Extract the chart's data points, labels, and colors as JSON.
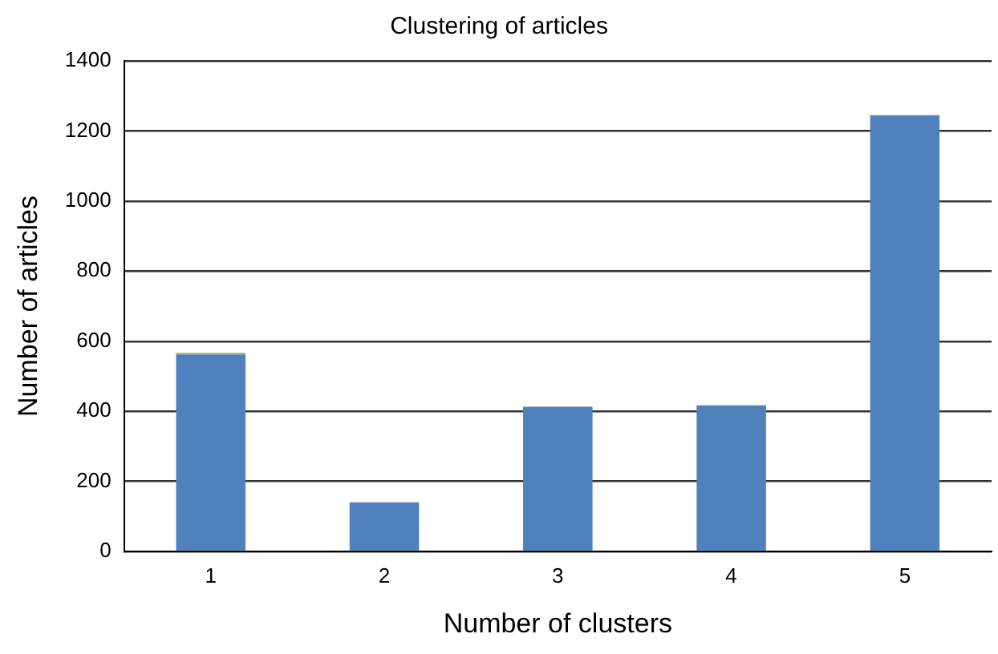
{
  "chart_data": {
    "type": "bar",
    "title": "Clustering of articles",
    "xlabel": "Number of clusters",
    "ylabel": "Number of articles",
    "categories": [
      "1",
      "2",
      "3",
      "4",
      "5"
    ],
    "stacked": true,
    "series": [
      {
        "color": "#4f81bd",
        "values": [
          562,
          140,
          413,
          417,
          1245
        ]
      },
      {
        "color": "#9bbb59",
        "values": [
          5,
          null,
          null,
          null,
          null
        ]
      }
    ],
    "ylim": [
      0,
      1400
    ],
    "yticks": [
      0,
      200,
      400,
      600,
      800,
      1000,
      1200,
      1400
    ],
    "grid": "y",
    "legend": false
  }
}
